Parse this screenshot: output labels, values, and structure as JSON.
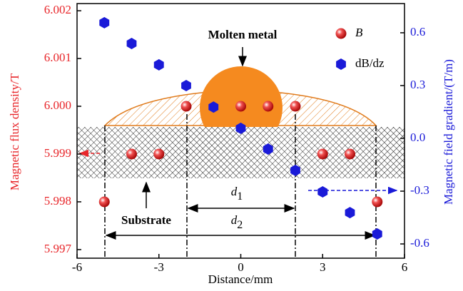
{
  "chart_data": {
    "type": "scatter",
    "x_label": "Distance/mm",
    "y_label": "Magnetic flux density/T",
    "y2_label": "Magnetic field gradient/(T/m)",
    "xlim": [
      -6,
      6
    ],
    "xticks": [
      -6,
      -3,
      0,
      3,
      6
    ],
    "ylim": [
      5.99682,
      6.00215
    ],
    "yticks": [
      5.997,
      5.998,
      5.999,
      {
        "value": 6,
        "label": "6.000"
      },
      6.001,
      6.002
    ],
    "y2lim": [
      -0.681,
      0.766
    ],
    "y2ticks": [
      -0.6,
      -0.3,
      {
        "value": 0,
        "label": "0.0"
      },
      0.3,
      0.6
    ],
    "y_color": "#e8262a",
    "y2_color": "#1a1ad8",
    "legend": "upper right",
    "series": [
      {
        "name": "B",
        "color": "#e8262a",
        "axis": "y",
        "marker": "ball",
        "x": [
          -5,
          -4,
          -3,
          -2,
          0,
          1,
          2,
          3,
          4,
          5
        ],
        "values": [
          5.998,
          5.999,
          5.999,
          6.0,
          6.0,
          6.0,
          6.0,
          5.999,
          5.999,
          5.998
        ]
      },
      {
        "name": "dB/dz",
        "color": "#1a1ad8",
        "axis": "y2",
        "marker": "hexagon",
        "x": [
          -5,
          -4,
          -3,
          -2,
          -1,
          0,
          1,
          2,
          3,
          4,
          5
        ],
        "values": [
          0.657,
          0.539,
          0.418,
          0.3,
          0.178,
          0.057,
          -0.061,
          -0.182,
          -0.304,
          -0.422,
          -0.543
        ]
      }
    ],
    "annotations": [
      {
        "text": "Molten metal"
      },
      {
        "text": "Substrate"
      },
      {
        "text": "d",
        "sub": "1"
      },
      {
        "text": "d",
        "sub": "2"
      }
    ]
  }
}
